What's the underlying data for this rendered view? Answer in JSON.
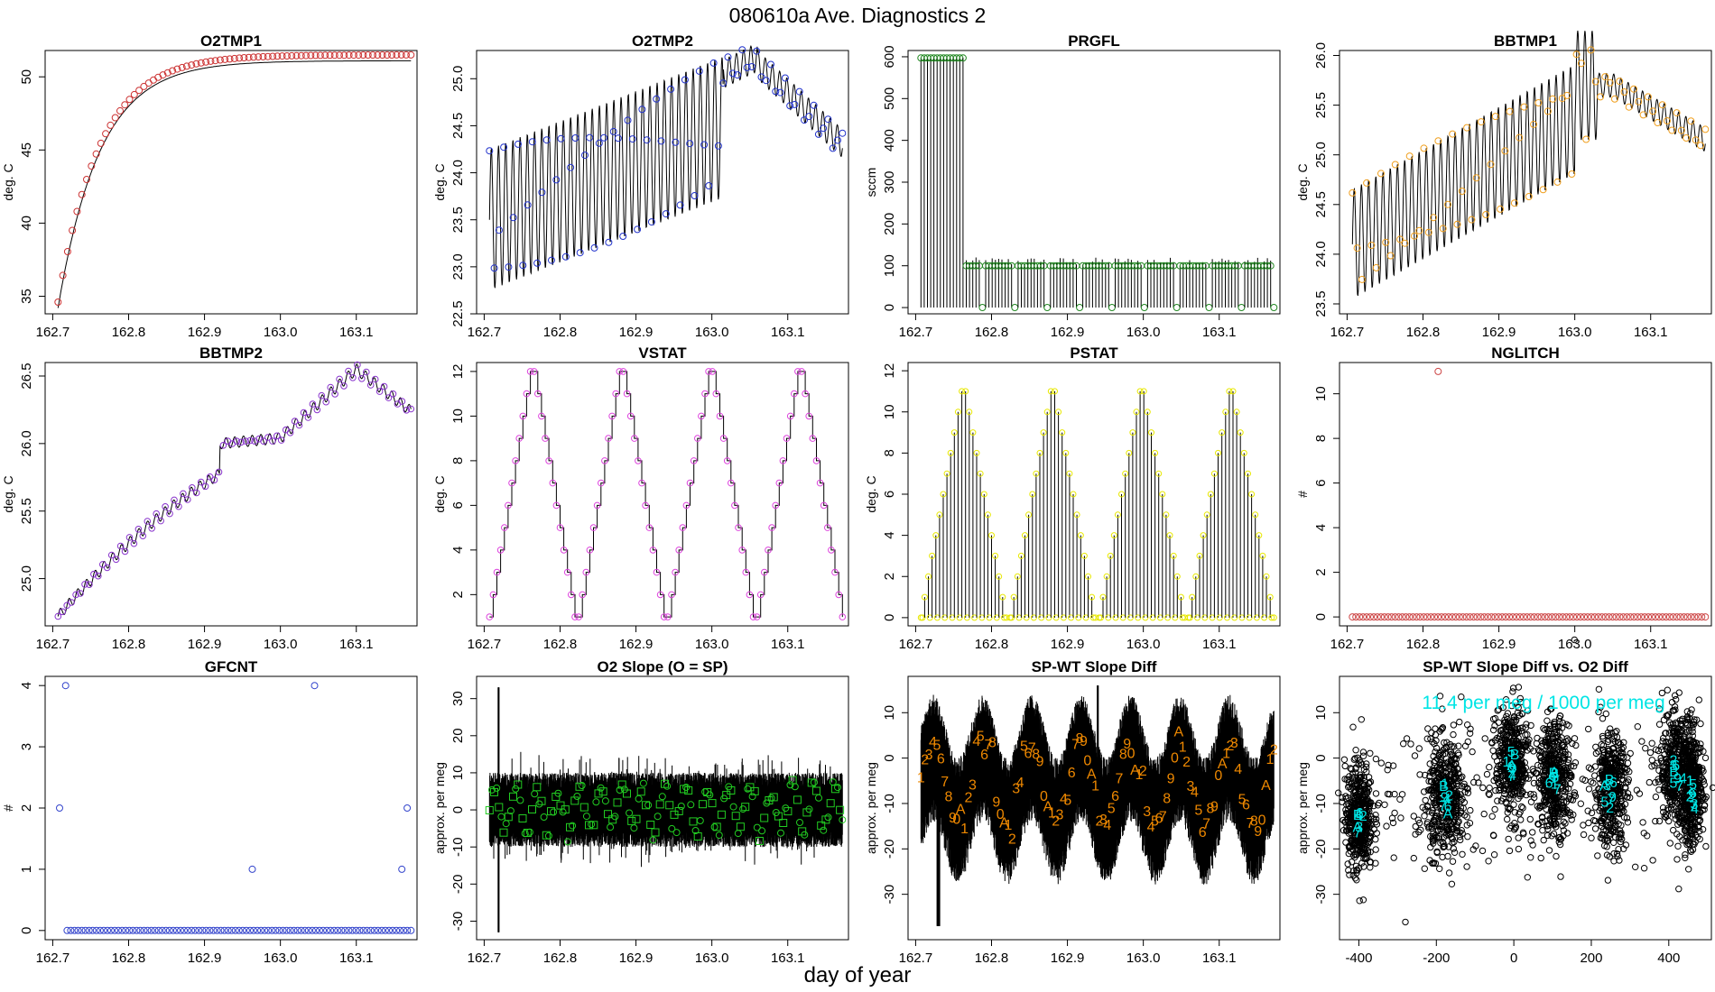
{
  "page": {
    "title": "080610a   Ave. Diagnostics 2",
    "xlabel": "day of year"
  },
  "chart_data": [
    {
      "id": "o2tmp1",
      "type": "scatter",
      "title": "O2TMP1",
      "ylabel": "deg. C",
      "xlim": [
        162.69,
        163.18
      ],
      "ylim": [
        33.8,
        51.8
      ],
      "xticks": [
        162.7,
        162.8,
        162.9,
        163.0,
        163.1
      ],
      "xtick_labels": [
        "162.7",
        "162.8",
        "162.9",
        "163.0",
        "163.1"
      ],
      "yticks": [
        35,
        40,
        45,
        50
      ],
      "ytick_labels": [
        "35",
        "40",
        "45",
        "50"
      ],
      "color": "#cc3333"
    },
    {
      "id": "o2tmp2",
      "type": "scatter",
      "title": "O2TMP2",
      "ylabel": "deg. C",
      "xlim": [
        162.69,
        163.18
      ],
      "ylim": [
        22.5,
        25.3
      ],
      "xticks": [
        162.7,
        162.8,
        162.9,
        163.0,
        163.1
      ],
      "xtick_labels": [
        "162.7",
        "162.8",
        "162.9",
        "163.0",
        "163.1"
      ],
      "yticks": [
        22.5,
        23.0,
        23.5,
        24.0,
        24.5,
        25.0
      ],
      "ytick_labels": [
        "22.5",
        "23.0",
        "23.5",
        "24.0",
        "24.5",
        "25.0"
      ],
      "color": "#2233cc"
    },
    {
      "id": "prgfl",
      "type": "scatter",
      "title": "PRGFL",
      "ylabel": "sccm",
      "xlim": [
        162.69,
        163.18
      ],
      "ylim": [
        -15,
        615
      ],
      "xticks": [
        162.7,
        162.8,
        162.9,
        163.0,
        163.1
      ],
      "xtick_labels": [
        "162.7",
        "162.8",
        "162.9",
        "163.0",
        "163.1"
      ],
      "yticks": [
        0,
        100,
        200,
        300,
        400,
        500,
        600
      ],
      "ytick_labels": [
        "0",
        "100",
        "200",
        "300",
        "400",
        "500",
        "600"
      ],
      "color": "#228822"
    },
    {
      "id": "bbtmp1",
      "type": "scatter",
      "title": "BBTMP1",
      "ylabel": "deg. C",
      "xlim": [
        162.69,
        163.18
      ],
      "ylim": [
        23.4,
        26.05
      ],
      "xticks": [
        162.7,
        162.8,
        162.9,
        163.0,
        163.1
      ],
      "xtick_labels": [
        "162.7",
        "162.8",
        "162.9",
        "163.0",
        "163.1"
      ],
      "yticks": [
        23.5,
        24.0,
        24.5,
        25.0,
        25.5,
        26.0
      ],
      "ytick_labels": [
        "23.5",
        "24.0",
        "24.5",
        "25.0",
        "25.5",
        "26.0"
      ],
      "color": "#f0a020"
    },
    {
      "id": "bbtmp2",
      "type": "scatter",
      "title": "BBTMP2",
      "ylabel": "deg. C",
      "xlim": [
        162.69,
        163.18
      ],
      "ylim": [
        24.65,
        26.6
      ],
      "xticks": [
        162.7,
        162.8,
        162.9,
        163.0,
        163.1
      ],
      "xtick_labels": [
        "162.7",
        "162.8",
        "162.9",
        "163.0",
        "163.1"
      ],
      "yticks": [
        25.0,
        25.5,
        26.0,
        26.5
      ],
      "ytick_labels": [
        "25.0",
        "25.5",
        "26.0",
        "26.5"
      ],
      "color": "#8833cc"
    },
    {
      "id": "vstat",
      "type": "scatter",
      "title": "VSTAT",
      "ylabel": "deg. C",
      "xlim": [
        162.69,
        163.18
      ],
      "ylim": [
        0.6,
        12.4
      ],
      "xticks": [
        162.7,
        162.8,
        162.9,
        163.0,
        163.1
      ],
      "xtick_labels": [
        "162.7",
        "162.8",
        "162.9",
        "163.0",
        "163.1"
      ],
      "yticks": [
        2,
        4,
        6,
        8,
        10,
        12
      ],
      "ytick_labels": [
        "2",
        "4",
        "6",
        "8",
        "10",
        "12"
      ],
      "color": "#dd44dd"
    },
    {
      "id": "pstat",
      "type": "scatter",
      "title": "PSTAT",
      "ylabel": "deg. C",
      "xlim": [
        162.69,
        163.18
      ],
      "ylim": [
        -0.4,
        12.4
      ],
      "xticks": [
        162.7,
        162.8,
        162.9,
        163.0,
        163.1
      ],
      "xtick_labels": [
        "162.7",
        "162.8",
        "162.9",
        "163.0",
        "163.1"
      ],
      "yticks": [
        0,
        2,
        4,
        6,
        8,
        10,
        12
      ],
      "ytick_labels": [
        "0",
        "2",
        "4",
        "6",
        "8",
        "10",
        "12"
      ],
      "color": "#e8e800"
    },
    {
      "id": "nglitch",
      "type": "scatter",
      "title": "NGLITCH",
      "ylabel": "#",
      "xlim": [
        162.69,
        163.18
      ],
      "ylim": [
        -0.4,
        11.4
      ],
      "xticks": [
        162.7,
        162.8,
        162.9,
        163.0,
        163.1
      ],
      "xtick_labels": [
        "162.7",
        "162.8",
        "162.9",
        "163.0",
        "163.1"
      ],
      "yticks": [
        0,
        2,
        4,
        6,
        8,
        10
      ],
      "ytick_labels": [
        "0",
        "2",
        "4",
        "6",
        "8",
        "10"
      ],
      "color": "#cc4444",
      "x": [
        162.82
      ],
      "y": [
        11
      ]
    },
    {
      "id": "gfcnt",
      "type": "scatter",
      "title": "GFCNT",
      "ylabel": "#",
      "xlim": [
        162.69,
        163.18
      ],
      "ylim": [
        -0.15,
        4.15
      ],
      "xticks": [
        162.7,
        162.8,
        162.9,
        163.0,
        163.1
      ],
      "xtick_labels": [
        "162.7",
        "162.8",
        "162.9",
        "163.0",
        "163.1"
      ],
      "yticks": [
        0,
        1,
        2,
        3,
        4
      ],
      "ytick_labels": [
        "0",
        "1",
        "2",
        "3",
        "4"
      ],
      "color": "#3344cc",
      "x": [
        162.709,
        162.717,
        162.963,
        163.045,
        163.16,
        163.167
      ],
      "y": [
        2,
        4,
        1,
        4,
        1,
        2
      ]
    },
    {
      "id": "o2slope",
      "type": "scatter",
      "title": "O2 Slope (O = SP)",
      "ylabel": "approx. per meg",
      "xlim": [
        162.69,
        163.18
      ],
      "ylim": [
        -35,
        36
      ],
      "xticks": [
        162.7,
        162.8,
        162.9,
        163.0,
        163.1
      ],
      "xtick_labels": [
        "162.7",
        "162.8",
        "162.9",
        "163.0",
        "163.1"
      ],
      "yticks": [
        -30,
        -20,
        -10,
        0,
        10,
        20,
        30
      ],
      "ytick_labels": [
        "-30",
        "-20",
        "-10",
        "0",
        "10",
        "20",
        "30"
      ],
      "color": "#22cc22"
    },
    {
      "id": "spwt",
      "type": "scatter",
      "title": "SP-WT Slope Diff",
      "ylabel": "approx. per meg",
      "xlim": [
        162.69,
        163.18
      ],
      "ylim": [
        -40,
        18
      ],
      "xticks": [
        162.7,
        162.8,
        162.9,
        163.0,
        163.1
      ],
      "xtick_labels": [
        "162.7",
        "162.8",
        "162.9",
        "163.0",
        "163.1"
      ],
      "yticks": [
        -30,
        -20,
        -10,
        0,
        10
      ],
      "ytick_labels": [
        "-30",
        "-20",
        "-10",
        "0",
        "10"
      ],
      "color": "#ee8800",
      "labels": [
        "1",
        "2",
        "3",
        "4",
        "5",
        "6",
        "7",
        "8",
        "9",
        "0",
        "A"
      ]
    },
    {
      "id": "spwt-vs-o2",
      "type": "scatter",
      "title": "SP-WT Slope Diff vs. O2 Diff",
      "ylabel": "approx. per meg",
      "xlim": [
        -450,
        510
      ],
      "ylim": [
        -40,
        18
      ],
      "xticks": [
        -400,
        -200,
        0,
        200,
        400
      ],
      "xtick_labels": [
        "-400",
        "-200",
        "0",
        "200",
        "400"
      ],
      "yticks": [
        -30,
        -20,
        -10,
        0,
        10
      ],
      "ytick_labels": [
        "-30",
        "-20",
        "-10",
        "0",
        "10"
      ],
      "color": "#00e5e5",
      "annotation": "11.4 per meg / 1000 per meg",
      "fit": {
        "slope_per_meg_per_1000": 11.4
      }
    }
  ]
}
